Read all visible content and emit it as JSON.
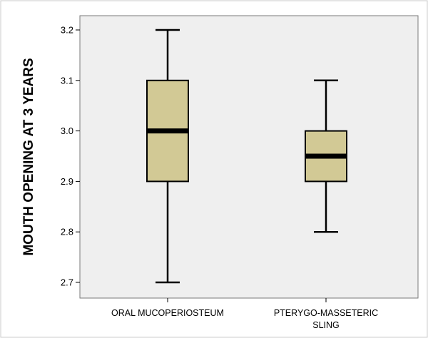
{
  "chart_data": {
    "type": "boxplot",
    "title": "",
    "xlabel": "",
    "ylabel": "MOUTH OPENING AT 3 YEARS",
    "ylim": [
      2.7,
      3.2
    ],
    "y_ticks": [
      "2.7",
      "2.8",
      "2.9",
      "3.0",
      "3.1",
      "3.2"
    ],
    "grid": false,
    "legend": "none",
    "categories": [
      {
        "label_lines": [
          "ORAL MUCOPERIOSTEUM"
        ]
      },
      {
        "label_lines": [
          "PTERYGO-MASSETERIC",
          "SLING"
        ]
      }
    ],
    "series": [
      {
        "min": 2.7,
        "q1": 2.9,
        "median": 3.0,
        "q3": 3.1,
        "max": 3.2
      },
      {
        "min": 2.8,
        "q1": 2.9,
        "median": 2.95,
        "q3": 3.0,
        "max": 3.1
      }
    ],
    "colors": {
      "box_fill": "#d2c995",
      "stroke": "#000000",
      "plot_background": "#efefef",
      "frame": "#7a7a7a"
    }
  }
}
